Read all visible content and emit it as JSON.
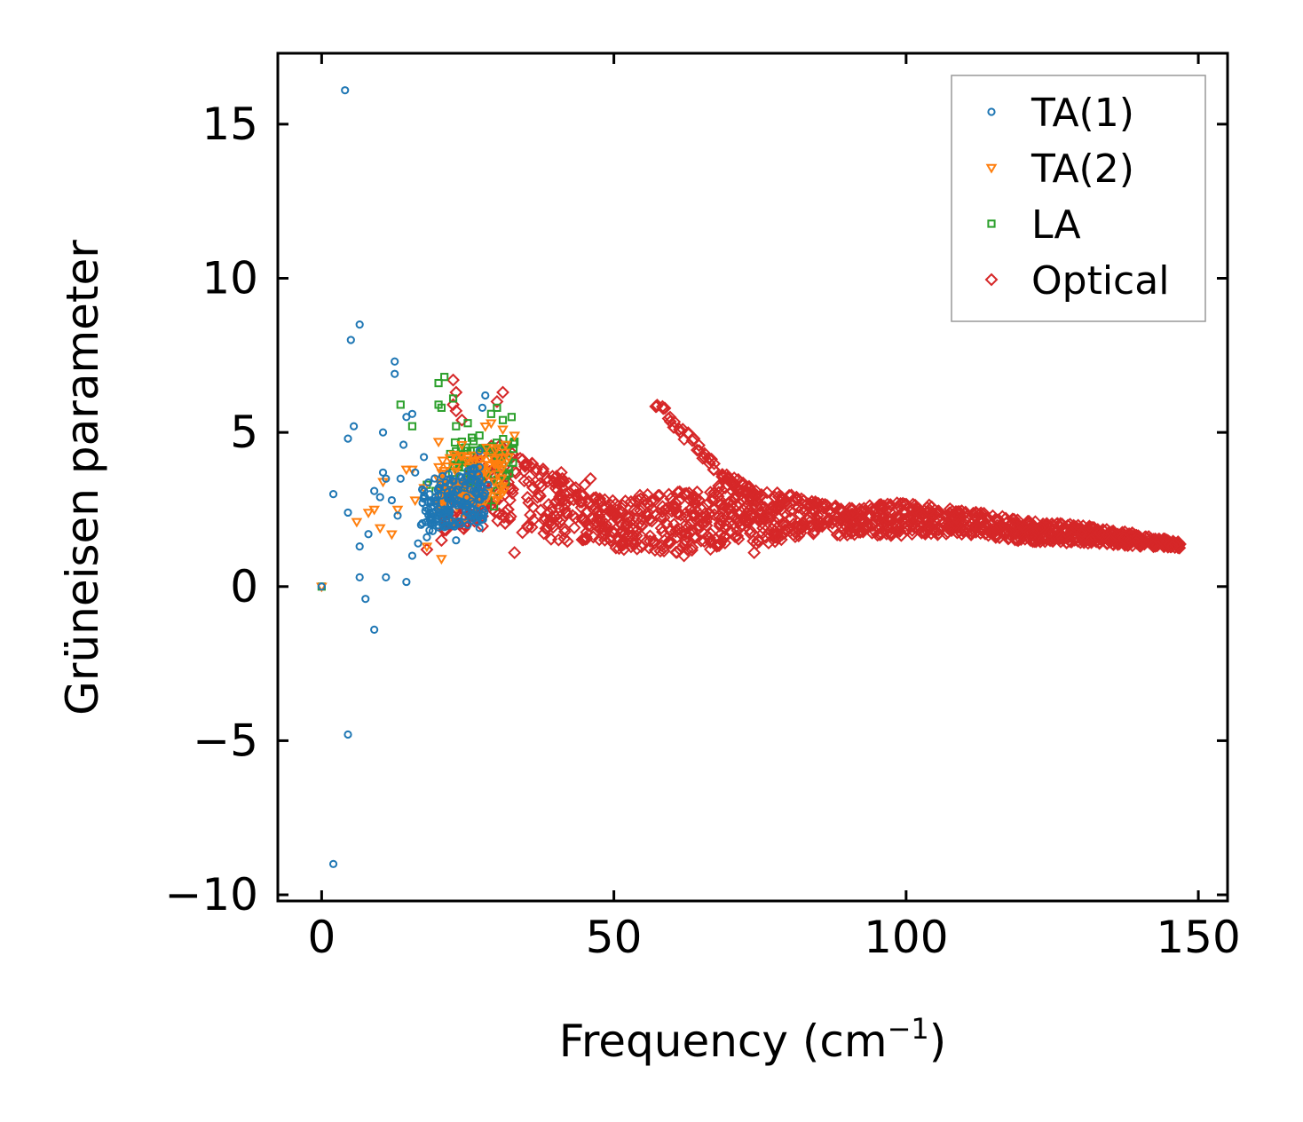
{
  "chart_data": {
    "type": "scatter",
    "title": "",
    "xlabel": "Frequency (cm",
    "xlabel_sup": "−1",
    "xlabel_close": ")",
    "ylabel": "Grüneisen parameter",
    "xlim": [
      -7.5,
      155
    ],
    "ylim": [
      -10.2,
      17.3
    ],
    "xticks": [
      0,
      50,
      100,
      150
    ],
    "xtick_labels": [
      "0",
      "50",
      "100",
      "150"
    ],
    "yticks": [
      -10,
      -5,
      0,
      5,
      10,
      15
    ],
    "ytick_labels": [
      "−10",
      "−5",
      "0",
      "5",
      "10",
      "15"
    ],
    "legend_position": "top-right",
    "series": [
      {
        "name": "TA(1)",
        "marker": "circle",
        "color": "#1f77b4",
        "points": [
          [
            4,
            16.1
          ],
          [
            2,
            -9
          ],
          [
            4.5,
            -4.8
          ],
          [
            0,
            0
          ],
          [
            6.5,
            8.5
          ],
          [
            5,
            8
          ],
          [
            5.5,
            5.2
          ],
          [
            4.5,
            4.8
          ],
          [
            2,
            3
          ],
          [
            4.5,
            2.4
          ],
          [
            6.5,
            1.3
          ],
          [
            6.5,
            0.3
          ],
          [
            7.5,
            -0.4
          ],
          [
            9,
            -1.4
          ],
          [
            8,
            1.7
          ],
          [
            9,
            3.1
          ],
          [
            10,
            2.9
          ],
          [
            10.5,
            3.7
          ],
          [
            11,
            3.5
          ],
          [
            10.5,
            5
          ],
          [
            12.5,
            7.3
          ],
          [
            12.5,
            6.9
          ],
          [
            14.5,
            5.5
          ],
          [
            15.5,
            5.6
          ],
          [
            14,
            4.6
          ],
          [
            11,
            0.3
          ],
          [
            14.5,
            0.15
          ],
          [
            15.5,
            1
          ],
          [
            16.5,
            1.4
          ],
          [
            13,
            2.3
          ],
          [
            12,
            2.8
          ],
          [
            13.5,
            3.5
          ],
          [
            17.5,
            4.2
          ],
          [
            16,
            3.7
          ],
          [
            17,
            2
          ],
          [
            18,
            1.6
          ],
          [
            18.5,
            2.4
          ],
          [
            19.5,
            2.9
          ],
          [
            20,
            3.2
          ],
          [
            21,
            2.5
          ],
          [
            22,
            3.5
          ],
          [
            23,
            1.5
          ],
          [
            24,
            2.7
          ],
          [
            24.5,
            3.2
          ],
          [
            25,
            2
          ],
          [
            25.5,
            3.8
          ],
          [
            26,
            2.5
          ],
          [
            26.5,
            3
          ],
          [
            27,
            4.4
          ],
          [
            27.5,
            5.8
          ],
          [
            28,
            6.2
          ],
          [
            28.5,
            3.3
          ],
          [
            27,
            1.9
          ],
          [
            26,
            2.2
          ],
          [
            22.5,
            2.9
          ],
          [
            23.5,
            2.1
          ],
          [
            19,
            1.8
          ]
        ]
      },
      {
        "name": "TA(2)",
        "marker": "triangle-down",
        "color": "#ff7f0e",
        "points": [
          [
            0,
            0
          ],
          [
            6,
            2.1
          ],
          [
            8,
            2.4
          ],
          [
            9,
            2.5
          ],
          [
            10,
            1.9
          ],
          [
            10.5,
            3.4
          ],
          [
            12,
            1.7
          ],
          [
            13,
            2.5
          ],
          [
            14.5,
            3.8
          ],
          [
            15.5,
            3.8
          ],
          [
            16,
            2.8
          ],
          [
            17.5,
            3.2
          ],
          [
            18,
            1.3
          ],
          [
            19,
            2.4
          ],
          [
            20,
            4.7
          ],
          [
            20.5,
            0.9
          ],
          [
            21.5,
            3.9
          ],
          [
            22,
            3.1
          ],
          [
            23,
            4.2
          ],
          [
            24,
            4.6
          ],
          [
            25,
            2.9
          ],
          [
            26,
            3.7
          ],
          [
            27,
            4.1
          ],
          [
            28,
            5.2
          ],
          [
            29,
            5.3
          ],
          [
            30,
            4.5
          ],
          [
            31,
            5.1
          ],
          [
            32,
            4.2
          ],
          [
            33,
            4.9
          ],
          [
            29.5,
            3.4
          ],
          [
            26.5,
            2.6
          ],
          [
            24.5,
            2.2
          ],
          [
            22.5,
            2.1
          ],
          [
            21,
            2.7
          ]
        ]
      },
      {
        "name": "LA",
        "marker": "square",
        "color": "#2ca02c",
        "points": [
          [
            0,
            0
          ],
          [
            13.5,
            5.9
          ],
          [
            15.5,
            5.2
          ],
          [
            20,
            6.6
          ],
          [
            21,
            6.8
          ],
          [
            20,
            5.9
          ],
          [
            20.5,
            5.8
          ],
          [
            22.5,
            6.1
          ],
          [
            23,
            5.2
          ],
          [
            24,
            4.7
          ],
          [
            25,
            5.3
          ],
          [
            22,
            4.3
          ],
          [
            23.5,
            3.9
          ],
          [
            24.5,
            4.4
          ],
          [
            25.5,
            4.4
          ],
          [
            26,
            3.5
          ],
          [
            27,
            4.9
          ],
          [
            28,
            4.5
          ],
          [
            29,
            5.6
          ],
          [
            30,
            5.8
          ],
          [
            31,
            5.4
          ],
          [
            32.5,
            5.5
          ],
          [
            33,
            4.7
          ],
          [
            31.5,
            3.4
          ],
          [
            30,
            3.1
          ],
          [
            28.5,
            2.8
          ],
          [
            26.5,
            3.3
          ],
          [
            18,
            3.3
          ],
          [
            19.5,
            3.1
          ],
          [
            29.5,
            2.6
          ]
        ]
      },
      {
        "name": "Optical",
        "marker": "diamond",
        "color": "#d62728",
        "density": 1400,
        "envelope_x": [
          20,
          25,
          30,
          35,
          40,
          45,
          50,
          55,
          60,
          65,
          70,
          75,
          80,
          90,
          100,
          110,
          120,
          130,
          140,
          147
        ],
        "envelope_center": [
          2.3,
          2.9,
          3.4,
          2.9,
          2.6,
          2.2,
          2.0,
          2.1,
          2.1,
          2.1,
          2.5,
          2.2,
          2.3,
          2.1,
          2.2,
          2.1,
          1.8,
          1.7,
          1.5,
          1.35
        ],
        "envelope_spread": [
          0.6,
          1.1,
          1.3,
          1.2,
          1.1,
          0.8,
          0.8,
          0.9,
          1.0,
          1.0,
          1.1,
          0.9,
          0.7,
          0.45,
          0.55,
          0.4,
          0.35,
          0.3,
          0.2,
          0.1
        ],
        "branch_points": [
          [
            57,
            6
          ],
          [
            58,
            5.9
          ],
          [
            59,
            5.6
          ],
          [
            60,
            5.4
          ],
          [
            61,
            5.2
          ],
          [
            62,
            5.0
          ],
          [
            63,
            4.8
          ],
          [
            64,
            4.6
          ],
          [
            65,
            4.4
          ],
          [
            66,
            4.2
          ],
          [
            67,
            4.0
          ],
          [
            68,
            3.8
          ],
          [
            69,
            3.7
          ],
          [
            70,
            3.5
          ],
          [
            71,
            3.3
          ],
          [
            72,
            3.2
          ],
          [
            73,
            3.1
          ],
          [
            74,
            3.0
          ]
        ],
        "outlier_points": [
          [
            22.5,
            6.7
          ],
          [
            23,
            6.3
          ],
          [
            22.5,
            5.9
          ],
          [
            23,
            5.7
          ],
          [
            24,
            5.4
          ],
          [
            31,
            6.3
          ],
          [
            30,
            6.0
          ],
          [
            36,
            4.0
          ],
          [
            41,
            3.7
          ],
          [
            45,
            3.3
          ],
          [
            46,
            3.5
          ],
          [
            33,
            1.1
          ],
          [
            20.5,
            1.5
          ],
          [
            18,
            1.2
          ],
          [
            74,
            1.1
          ],
          [
            62,
            1.0
          ]
        ]
      }
    ]
  }
}
